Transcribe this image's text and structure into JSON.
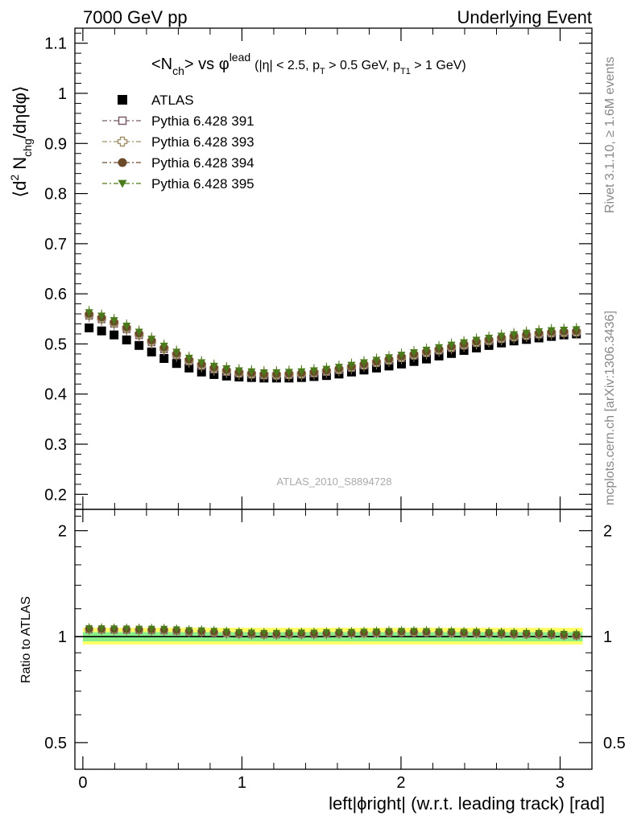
{
  "header": {
    "left": "7000 GeV pp",
    "right": "Underlying Event"
  },
  "side_labels": {
    "rivet": "Rivet 3.1.10, ≥ 1.6M events",
    "mcplots": "mcplots.cern.ch [arXiv:1306.3436]"
  },
  "colors": {
    "atlas": "#000000",
    "p391": "#7a5b6b",
    "p393": "#a09068",
    "p394": "#6b4a2a",
    "p395": "#4a7a1a",
    "band_yellow": "#ffff66",
    "band_green": "#88ee88"
  },
  "chart_data": [
    {
      "type": "scatter",
      "title": "<N_ch> vs φ^lead (|η| < 2.5, p_T > 0.5 GeV, p_T1 > 1 GeV)",
      "title_parts": {
        "main": "<N",
        "main_sub": "ch",
        "main_rest": "> vs φ",
        "main_sup": "lead",
        "cond_a": "(|η| < 2.5, p",
        "cond_a_sub": "T",
        "cond_b": " > 0.5 GeV, p",
        "cond_b_sub": "T1",
        "cond_c": " > 1 GeV)"
      },
      "ylabel": "⟨d² N_chg/dηdφ⟩",
      "ylabel_parts": {
        "a": "⟨d",
        "sup": "2",
        "b": " N",
        "sub": "chg",
        "c": "/dηdφ⟩"
      },
      "watermark": "ATLAS_2010_S8894728",
      "xlim": [
        -0.05,
        3.2
      ],
      "ylim": [
        0.17,
        1.13
      ],
      "yticks": [
        0.2,
        0.3,
        0.4,
        0.5,
        0.6,
        0.7,
        0.8,
        0.9,
        1,
        1.1
      ],
      "ytick_labels": [
        "0.2",
        "0.3",
        "0.4",
        "0.5",
        "0.6",
        "0.7",
        "0.8",
        "0.9",
        "1",
        "1.1"
      ],
      "x": [
        0.0393,
        0.1178,
        0.1963,
        0.2749,
        0.3534,
        0.432,
        0.5105,
        0.589,
        0.6676,
        0.7461,
        0.8247,
        0.9032,
        0.9817,
        1.0603,
        1.1388,
        1.2174,
        1.2959,
        1.3744,
        1.453,
        1.5315,
        1.6101,
        1.6886,
        1.7671,
        1.8457,
        1.9242,
        2.0028,
        2.0813,
        2.1598,
        2.2384,
        2.3169,
        2.3955,
        2.474,
        2.5525,
        2.6311,
        2.7096,
        2.7882,
        2.8667,
        2.9452,
        3.0238,
        3.1023
      ],
      "legend_position": "top-left",
      "series": [
        {
          "name": "ATLAS",
          "marker": "square-filled",
          "values": [
            0.532,
            0.526,
            0.518,
            0.508,
            0.497,
            0.484,
            0.471,
            0.461,
            0.452,
            0.444,
            0.439,
            0.436,
            0.434,
            0.433,
            0.432,
            0.432,
            0.432,
            0.433,
            0.435,
            0.437,
            0.44,
            0.444,
            0.448,
            0.452,
            0.456,
            0.46,
            0.465,
            0.47,
            0.476,
            0.481,
            0.487,
            0.492,
            0.497,
            0.502,
            0.506,
            0.509,
            0.512,
            0.515,
            0.518,
            0.52
          ]
        },
        {
          "name": "Pythia 6.428 391",
          "marker": "square-open",
          "values": [
            0.556,
            0.549,
            0.54,
            0.529,
            0.517,
            0.503,
            0.489,
            0.477,
            0.465,
            0.456,
            0.449,
            0.444,
            0.441,
            0.439,
            0.437,
            0.437,
            0.438,
            0.439,
            0.441,
            0.444,
            0.448,
            0.452,
            0.457,
            0.462,
            0.467,
            0.472,
            0.477,
            0.482,
            0.487,
            0.492,
            0.497,
            0.502,
            0.506,
            0.51,
            0.514,
            0.517,
            0.519,
            0.521,
            0.522,
            0.523
          ]
        },
        {
          "name": "Pythia 6.428 393",
          "marker": "cross-open",
          "values": [
            0.558,
            0.551,
            0.542,
            0.531,
            0.519,
            0.505,
            0.491,
            0.479,
            0.467,
            0.458,
            0.451,
            0.446,
            0.442,
            0.44,
            0.439,
            0.438,
            0.439,
            0.44,
            0.443,
            0.446,
            0.449,
            0.454,
            0.458,
            0.463,
            0.468,
            0.473,
            0.478,
            0.483,
            0.488,
            0.493,
            0.498,
            0.503,
            0.507,
            0.511,
            0.514,
            0.517,
            0.52,
            0.522,
            0.523,
            0.524
          ]
        },
        {
          "name": "Pythia 6.428 394",
          "marker": "circle-filled",
          "values": [
            0.56,
            0.553,
            0.544,
            0.533,
            0.521,
            0.507,
            0.493,
            0.481,
            0.469,
            0.46,
            0.453,
            0.448,
            0.444,
            0.442,
            0.44,
            0.44,
            0.441,
            0.442,
            0.444,
            0.447,
            0.451,
            0.455,
            0.46,
            0.465,
            0.47,
            0.475,
            0.48,
            0.485,
            0.49,
            0.495,
            0.5,
            0.505,
            0.509,
            0.513,
            0.516,
            0.519,
            0.522,
            0.524,
            0.525,
            0.526
          ]
        },
        {
          "name": "Pythia 6.428 395",
          "marker": "triangle-down-filled",
          "values": [
            0.563,
            0.556,
            0.547,
            0.536,
            0.524,
            0.51,
            0.496,
            0.484,
            0.472,
            0.463,
            0.456,
            0.451,
            0.447,
            0.445,
            0.443,
            0.443,
            0.444,
            0.445,
            0.447,
            0.45,
            0.454,
            0.458,
            0.463,
            0.468,
            0.473,
            0.478,
            0.483,
            0.488,
            0.493,
            0.498,
            0.503,
            0.508,
            0.512,
            0.516,
            0.519,
            0.522,
            0.525,
            0.527,
            0.528,
            0.529
          ]
        }
      ]
    },
    {
      "type": "scatter",
      "ylabel": "Ratio to ATLAS",
      "xlabel": "left|ϕright| (w.r.t. leading track) [rad]",
      "xlim": [
        -0.05,
        3.2
      ],
      "ylim": [
        0.42,
        2.3
      ],
      "log_y": true,
      "xticks": [
        0,
        1,
        2,
        3
      ],
      "xtick_labels": [
        "0",
        "1",
        "2",
        "3"
      ],
      "yticks": [
        0.5,
        1,
        2
      ],
      "ytick_labels": [
        "0.5",
        "1",
        "2"
      ],
      "reference_line": 1,
      "band_yellow": [
        0.95,
        1.06
      ],
      "band_green": [
        0.97,
        1.03
      ],
      "series_from_panel_0": true
    }
  ]
}
